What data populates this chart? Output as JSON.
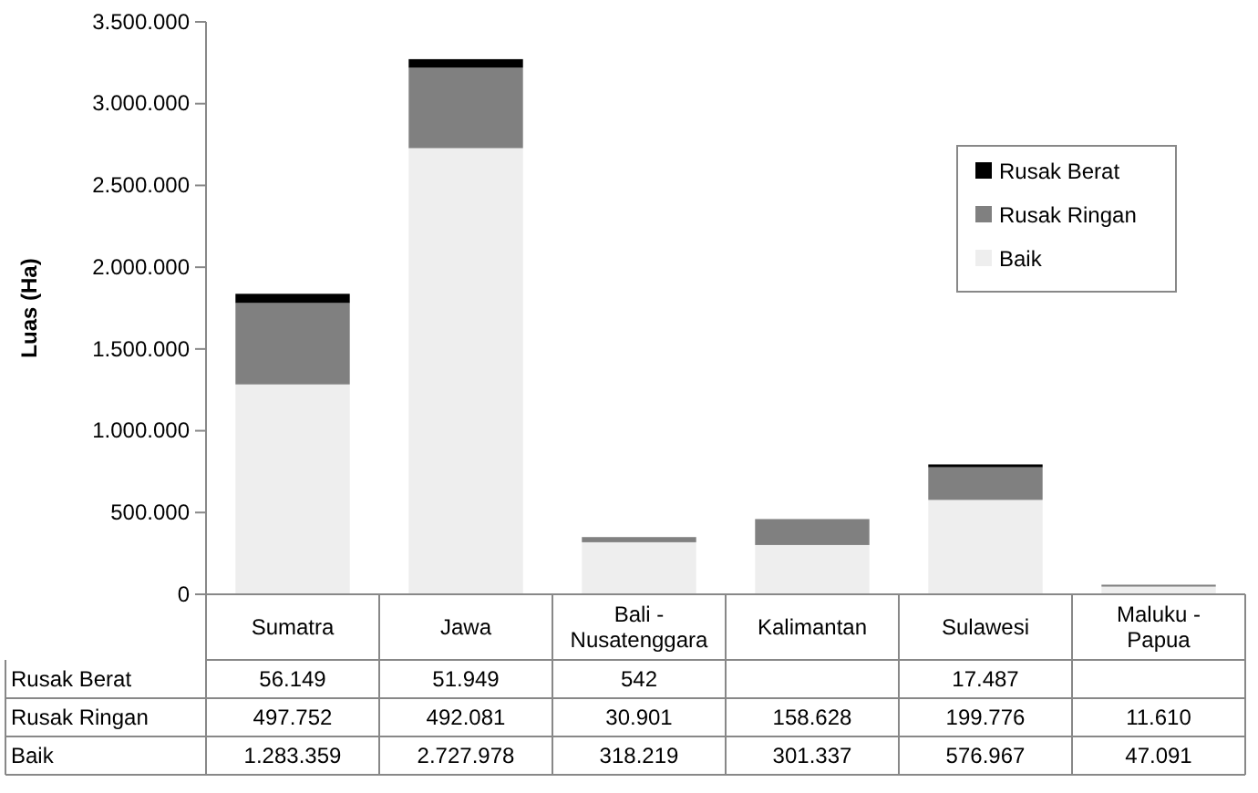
{
  "chart_data": {
    "type": "bar",
    "stacked": true,
    "ylabel": "Luas (Ha)",
    "categories": [
      "Sumatra",
      "Jawa",
      "Bali - Nusatenggara",
      "Kalimantan",
      "Sulawesi",
      "Maluku - Papua"
    ],
    "series": [
      {
        "name": "Baik",
        "color": "#eeeeee",
        "values": [
          1283359,
          2727978,
          318219,
          301337,
          576967,
          47091
        ],
        "value_labels": [
          "1.283.359",
          "2.727.978",
          "318.219",
          "301.337",
          "576.967",
          "47.091"
        ]
      },
      {
        "name": "Rusak Ringan",
        "color": "#808080",
        "values": [
          497752,
          492081,
          30901,
          158628,
          199776,
          11610
        ],
        "value_labels": [
          "497.752",
          "492.081",
          "30.901",
          "158.628",
          "199.776",
          "11.610"
        ]
      },
      {
        "name": "Rusak Berat",
        "color": "#000000",
        "values": [
          56149,
          51949,
          542,
          null,
          17487,
          null
        ],
        "value_labels": [
          "56.149",
          "51.949",
          "542",
          null,
          "17.487",
          null
        ]
      }
    ],
    "ylim": [
      0,
      3500000
    ],
    "yticks": [
      {
        "value": 0,
        "label": "0"
      },
      {
        "value": 500000,
        "label": "500.000"
      },
      {
        "value": 1000000,
        "label": "1.000.000"
      },
      {
        "value": 1500000,
        "label": "1.500.000"
      },
      {
        "value": 2000000,
        "label": "2.000.000"
      },
      {
        "value": 2500000,
        "label": "2.500.000"
      },
      {
        "value": 3000000,
        "label": "3.000.000"
      },
      {
        "value": 3500000,
        "label": "3.500.000"
      }
    ],
    "legend": "top right"
  }
}
